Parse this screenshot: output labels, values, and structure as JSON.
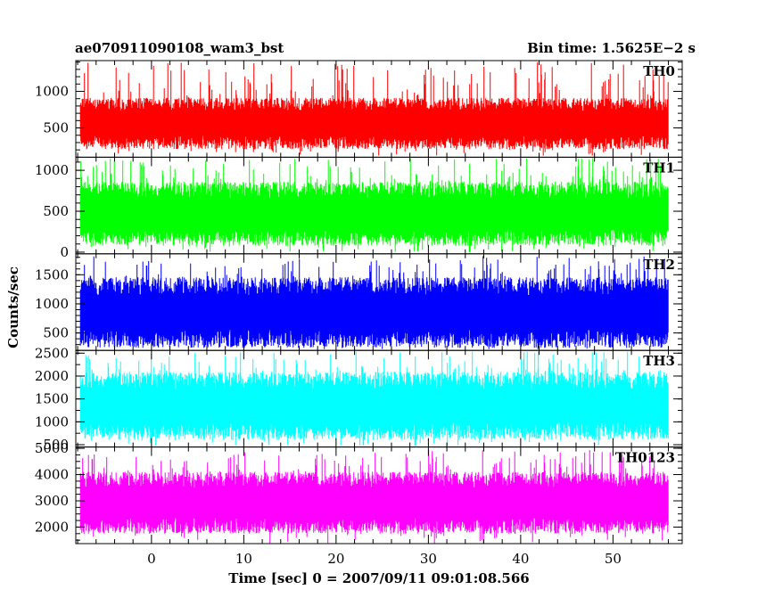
{
  "chart_data": {
    "type": "line",
    "title": "ae070911090108_wam3_bst",
    "subtitle": "Bin time: 1.5625E−2 s",
    "xlabel": "Time [sec] 0 = 2007/09/11 09:01:08.566",
    "ylabel": "Counts/sec",
    "xlim": [
      -8.2,
      57.5
    ],
    "data_x_range": [
      -7.7,
      56.0
    ],
    "x_ticks": [
      0,
      10,
      20,
      30,
      40,
      50
    ],
    "x_minor_step": 2,
    "bin_time": 0.015625,
    "grid": false,
    "legend": "none",
    "panels": [
      {
        "name": "TH0",
        "color": "#ff0000",
        "ylim": [
          100,
          1420
        ],
        "y_ticks": [
          500,
          1000
        ],
        "typical_low": 300,
        "typical_high": 820,
        "min_dip": 120,
        "max_peak": 1400
      },
      {
        "name": "TH1",
        "color": "#00ff00",
        "ylim": [
          -20,
          1160
        ],
        "y_ticks": [
          0,
          500,
          1000
        ],
        "typical_low": 180,
        "typical_high": 760,
        "min_dip": 0,
        "max_peak": 1150
      },
      {
        "name": "TH2",
        "color": "#0000ff",
        "ylim": [
          200,
          1860
        ],
        "y_ticks": [
          500,
          1000,
          1500
        ],
        "typical_low": 400,
        "typical_high": 1300,
        "min_dip": 220,
        "max_peak": 1820
      },
      {
        "name": "TH3",
        "color": "#00ffff",
        "ylim": [
          450,
          2560
        ],
        "y_ticks": [
          500,
          1000,
          1500,
          2000,
          2500
        ],
        "typical_low": 800,
        "typical_high": 1900,
        "min_dip": 470,
        "max_peak": 2540
      },
      {
        "name": "TH0123",
        "color": "#ff00ff",
        "ylim": [
          1370,
          5050
        ],
        "y_ticks": [
          2000,
          3000,
          4000,
          5000
        ],
        "typical_low": 2050,
        "typical_high": 3800,
        "min_dip": 1380,
        "max_peak": 4950
      }
    ]
  }
}
